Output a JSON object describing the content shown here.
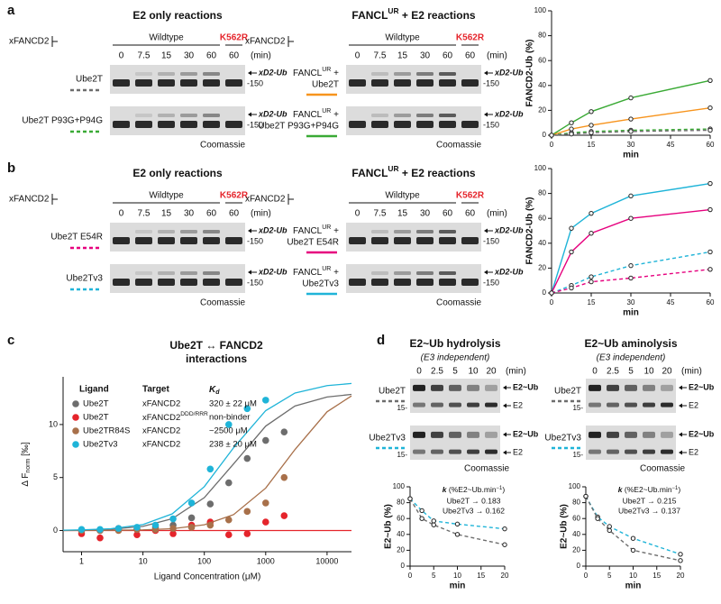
{
  "panel_labels": [
    "a",
    "b",
    "c",
    "d"
  ],
  "gel_blocks": [
    {
      "title": {
        "text": "E2 only reactions"
      },
      "construct": "xFANCD2",
      "groups": [
        "Wildtype",
        "K562R"
      ],
      "group_colors": [
        "#111111",
        "#e5242b"
      ],
      "lanes": [
        "0",
        "7.5",
        "15",
        "30",
        "60",
        "60"
      ],
      "unit": "(min)",
      "rows": [
        {
          "label": "Ube2T",
          "color": "#6d6d6d",
          "dashed": true,
          "band": "xD2-Ub",
          "mw": "-150"
        },
        {
          "label": "Ube2T P93G+P94G",
          "color": "#3aaa35",
          "dashed": true,
          "band": "xD2-Ub",
          "mw": "-150"
        }
      ],
      "stain": "Coomassie"
    },
    {
      "title": {
        "text": "FANCL",
        "sup": "UR",
        "post": " + E2 reactions"
      },
      "construct": "xFANCD2",
      "groups": [
        "Wildtype",
        "K562R"
      ],
      "group_colors": [
        "#111111",
        "#e5242b"
      ],
      "lanes": [
        "0",
        "7.5",
        "15",
        "30",
        "60",
        "60"
      ],
      "unit": "(min)",
      "rows": [
        {
          "prefix": {
            "text": "FANCL",
            "sup": "UR",
            "post": " +"
          },
          "label": "Ube2T",
          "color": "#f7941d",
          "dashed": false,
          "band": "xD2-Ub",
          "mw": "-150"
        },
        {
          "prefix": {
            "text": "FANCL",
            "sup": "UR",
            "post": " +"
          },
          "label": "Ube2T P93G+P94G",
          "color": "#3aaa35",
          "dashed": false,
          "band": "xD2-Ub",
          "mw": "-150"
        }
      ],
      "stain": "Coomassie"
    },
    {
      "title": {
        "text": "E2 only reactions"
      },
      "construct": "xFANCD2",
      "groups": [
        "Wildtype",
        "K562R"
      ],
      "group_colors": [
        "#111111",
        "#e5242b"
      ],
      "lanes": [
        "0",
        "7.5",
        "15",
        "30",
        "60",
        "60"
      ],
      "unit": "(min)",
      "rows": [
        {
          "label": "Ube2T E54R",
          "color": "#e6007e",
          "dashed": true,
          "band": "xD2-Ub",
          "mw": "-150"
        },
        {
          "label": "Ube2Tv3",
          "color": "#1fb4d8",
          "dashed": true,
          "band": "xD2-Ub",
          "mw": "-150"
        }
      ],
      "stain": "Coomassie"
    },
    {
      "title": {
        "text": "FANCL",
        "sup": "UR",
        "post": " + E2 reactions"
      },
      "construct": "xFANCD2",
      "groups": [
        "Wildtype",
        "K562R"
      ],
      "group_colors": [
        "#111111",
        "#e5242b"
      ],
      "lanes": [
        "0",
        "7.5",
        "15",
        "30",
        "60",
        "60"
      ],
      "unit": "(min)",
      "rows": [
        {
          "prefix": {
            "text": "FANCL",
            "sup": "UR",
            "post": " +"
          },
          "label": "Ube2T E54R",
          "color": "#e6007e",
          "dashed": false,
          "band": "xD2-Ub",
          "mw": "-150"
        },
        {
          "prefix": {
            "text": "FANCL",
            "sup": "UR",
            "post": " +"
          },
          "label": "Ube2Tv3",
          "color": "#1fb4d8",
          "dashed": false,
          "band": "xD2-Ub",
          "mw": "-150"
        }
      ],
      "stain": "Coomassie"
    }
  ],
  "gel_blocks_d": [
    {
      "title": "E2~Ub hydrolysis",
      "subtitle": "(E3 independent)",
      "lanes": [
        "0",
        "2.5",
        "5",
        "10",
        "20"
      ],
      "unit": "(min)",
      "rows": [
        {
          "label": "Ube2T",
          "color": "#6d6d6d",
          "dashed": true,
          "bands": [
            "E2~Ub",
            "E2"
          ],
          "mw": "15-"
        },
        {
          "label": "Ube2Tv3",
          "color": "#1fb4d8",
          "dashed": true,
          "bands": [
            "E2~Ub",
            "E2"
          ],
          "mw": "15-"
        }
      ],
      "stain": "Coomassie"
    },
    {
      "title": "E2~Ub aminolysis",
      "subtitle": "(E3 independent)",
      "lanes": [
        "0",
        "2.5",
        "5",
        "10",
        "20"
      ],
      "unit": "(min)",
      "rows": [
        {
          "label": "Ube2T",
          "color": "#6d6d6d",
          "dashed": true,
          "bands": [
            "E2~Ub",
            "E2"
          ],
          "mw": "15-"
        },
        {
          "label": "Ube2Tv3",
          "color": "#1fb4d8",
          "dashed": true,
          "bands": [
            "E2~Ub",
            "E2"
          ],
          "mw": "15-"
        }
      ],
      "stain": "Coomassie"
    }
  ],
  "chart_data": [
    {
      "type": "line",
      "x": [
        0,
        7.5,
        15,
        30,
        60
      ],
      "xlim": [
        0,
        60
      ],
      "xticks": [
        0,
        15,
        30,
        45,
        60
      ],
      "ylim": [
        0,
        100
      ],
      "yticks": [
        0,
        20,
        40,
        60,
        80,
        100
      ],
      "y_label": "FANCD2-Ub (%)",
      "x_label": "min",
      "series": [
        {
          "color": "#3aaa35",
          "dashed": false,
          "values": [
            0,
            10,
            19,
            30,
            44
          ]
        },
        {
          "color": "#f7941d",
          "dashed": false,
          "values": [
            0,
            5,
            8,
            13,
            22
          ]
        },
        {
          "color": "#3aaa35",
          "dashed": true,
          "values": [
            0,
            2,
            3,
            4,
            5
          ]
        },
        {
          "color": "#6d6d6d",
          "dashed": true,
          "values": [
            0,
            1,
            2,
            3,
            4
          ]
        }
      ]
    },
    {
      "type": "line",
      "x": [
        0,
        7.5,
        15,
        30,
        60
      ],
      "xlim": [
        0,
        60
      ],
      "xticks": [
        0,
        15,
        30,
        45,
        60
      ],
      "ylim": [
        0,
        100
      ],
      "yticks": [
        0,
        20,
        40,
        60,
        80,
        100
      ],
      "y_label": "FANCD2-Ub (%)",
      "x_label": "min",
      "series": [
        {
          "color": "#1fb4d8",
          "dashed": false,
          "values": [
            0,
            52,
            64,
            78,
            88
          ]
        },
        {
          "color": "#e6007e",
          "dashed": false,
          "values": [
            0,
            33,
            48,
            60,
            67
          ]
        },
        {
          "color": "#1fb4d8",
          "dashed": true,
          "values": [
            0,
            6,
            13,
            22,
            33
          ]
        },
        {
          "color": "#e6007e",
          "dashed": true,
          "values": [
            0,
            4,
            9,
            12,
            19
          ]
        }
      ]
    },
    {
      "type": "scatter",
      "title": "Ube2T ↔ FANCD2",
      "subtitle": "interactions",
      "x_scale": "log",
      "xlim": [
        0.5,
        25000
      ],
      "xticks": [
        1,
        10,
        100,
        1000,
        10000
      ],
      "ylim": [
        -2,
        14.5
      ],
      "yticks": [
        0,
        5,
        10
      ],
      "x_label": "Ligand Concentration (μM)",
      "y_label": {
        "text": "Δ F",
        "sub": "norm",
        "post": " [‰]"
      },
      "legend_header": {
        "ligand": "Ligand",
        "target": "Target",
        "kd": {
          "text": "K",
          "sub": "d"
        }
      },
      "series": [
        {
          "name": "Ube2T",
          "target": "xFANCD2",
          "kd": "320 ± 22 μM",
          "color": "#6d6d6d",
          "x": [
            1,
            2,
            4,
            8,
            16,
            31,
            62,
            125,
            250,
            500,
            1000,
            2000
          ],
          "values": [
            0,
            0,
            0.1,
            0.1,
            0.3,
            0.5,
            1.2,
            2.5,
            4.5,
            6.8,
            8.5,
            9.3
          ],
          "fit": {
            "x": [
              0.5,
              1,
              3,
              10,
              30,
              100,
              300,
              1000,
              3000,
              10000,
              25000
            ],
            "values": [
              0.02,
              0.04,
              0.12,
              0.39,
              1.11,
              3.1,
              6.29,
              9.85,
              11.75,
              12.6,
              12.84
            ]
          }
        },
        {
          "name": "Ube2T",
          "target": {
            "text": "xFANCD2",
            "sup": "DDD/RRR"
          },
          "kd": "non-binder",
          "color": "#e5242b",
          "x": [
            1,
            2,
            4,
            8,
            16,
            31,
            62,
            125,
            250,
            500,
            1000,
            2000
          ],
          "values": [
            -0.3,
            -0.7,
            0.2,
            -0.4,
            0,
            -0.3,
            0.5,
            0.8,
            -0.4,
            -0.3,
            0.8,
            1.4
          ],
          "fit": {
            "x": [
              0.5,
              25000
            ],
            "values": [
              0,
              0
            ]
          }
        },
        {
          "name": "Ube2TR84S",
          "target": "xFANCD2",
          "kd": "~2500 μM",
          "color": "#a8704a",
          "x": [
            1,
            2,
            4,
            8,
            16,
            31,
            62,
            125,
            250,
            500,
            1000,
            2000
          ],
          "values": [
            0,
            0,
            0,
            0.1,
            0.1,
            0.2,
            0.3,
            0.5,
            1,
            1.8,
            2.6,
            5
          ],
          "fit": {
            "x": [
              0.5,
              1,
              3,
              10,
              30,
              100,
              300,
              1000,
              3000,
              10000,
              25000
            ],
            "values": [
              0,
              0.01,
              0.02,
              0.06,
              0.17,
              0.54,
              1.5,
              4,
              7.64,
              11.2,
              12.7
            ]
          }
        },
        {
          "name": "Ube2Tv3",
          "target": "xFANCD2",
          "kd": "238 ± 20 μM",
          "color": "#1fb4d8",
          "x": [
            1,
            2,
            4,
            8,
            16,
            31,
            62,
            125,
            250,
            500,
            1000
          ],
          "values": [
            0.1,
            0.1,
            0.2,
            0.3,
            0.5,
            1.1,
            2.6,
            5.8,
            10,
            11.5,
            12.3
          ],
          "fit": {
            "x": [
              0.5,
              1,
              3,
              10,
              30,
              100,
              300,
              1000,
              3000,
              10000,
              25000
            ],
            "values": [
              0.03,
              0.06,
              0.17,
              0.56,
              1.57,
              4.14,
              7.81,
              11.31,
              12.97,
              13.67,
              13.87
            ]
          }
        }
      ]
    },
    {
      "type": "line",
      "x": [
        0,
        2.5,
        5,
        10,
        20
      ],
      "xlim": [
        0,
        20
      ],
      "xticks": [
        0,
        5,
        10,
        15,
        20
      ],
      "ylim": [
        0,
        100
      ],
      "yticks": [
        0,
        20,
        40,
        60,
        80,
        100
      ],
      "y_label": "E2~Ub (%)",
      "x_label": "min",
      "annotation": {
        "symbol": "k",
        "units": " (%E2~Ub.min",
        "units_sup": "−1",
        "units_post": ")",
        "lines": [
          "Ube2T → 0.183",
          "Ube2Tv3 → 0.162"
        ]
      },
      "series": [
        {
          "color": "#1fb4d8",
          "dashed": true,
          "values": [
            85,
            70,
            57,
            53,
            47
          ]
        },
        {
          "color": "#6d6d6d",
          "dashed": true,
          "values": [
            85,
            60,
            52,
            40,
            27
          ]
        }
      ]
    },
    {
      "type": "line",
      "x": [
        0,
        2.5,
        5,
        10,
        20
      ],
      "xlim": [
        0,
        20
      ],
      "xticks": [
        0,
        5,
        10,
        15,
        20
      ],
      "ylim": [
        0,
        100
      ],
      "yticks": [
        0,
        20,
        40,
        60,
        80,
        100
      ],
      "y_label": "E2~Ub (%)",
      "x_label": "min",
      "annotation": {
        "symbol": "k",
        "units": " (%E2~Ub.min",
        "units_sup": "−1",
        "units_post": ")",
        "lines": [
          "Ube2T → 0.215",
          "Ube2Tv3 → 0.137"
        ]
      },
      "series": [
        {
          "color": "#1fb4d8",
          "dashed": true,
          "values": [
            88,
            62,
            50,
            35,
            15
          ]
        },
        {
          "color": "#6d6d6d",
          "dashed": true,
          "values": [
            88,
            60,
            45,
            20,
            7
          ]
        }
      ]
    }
  ]
}
